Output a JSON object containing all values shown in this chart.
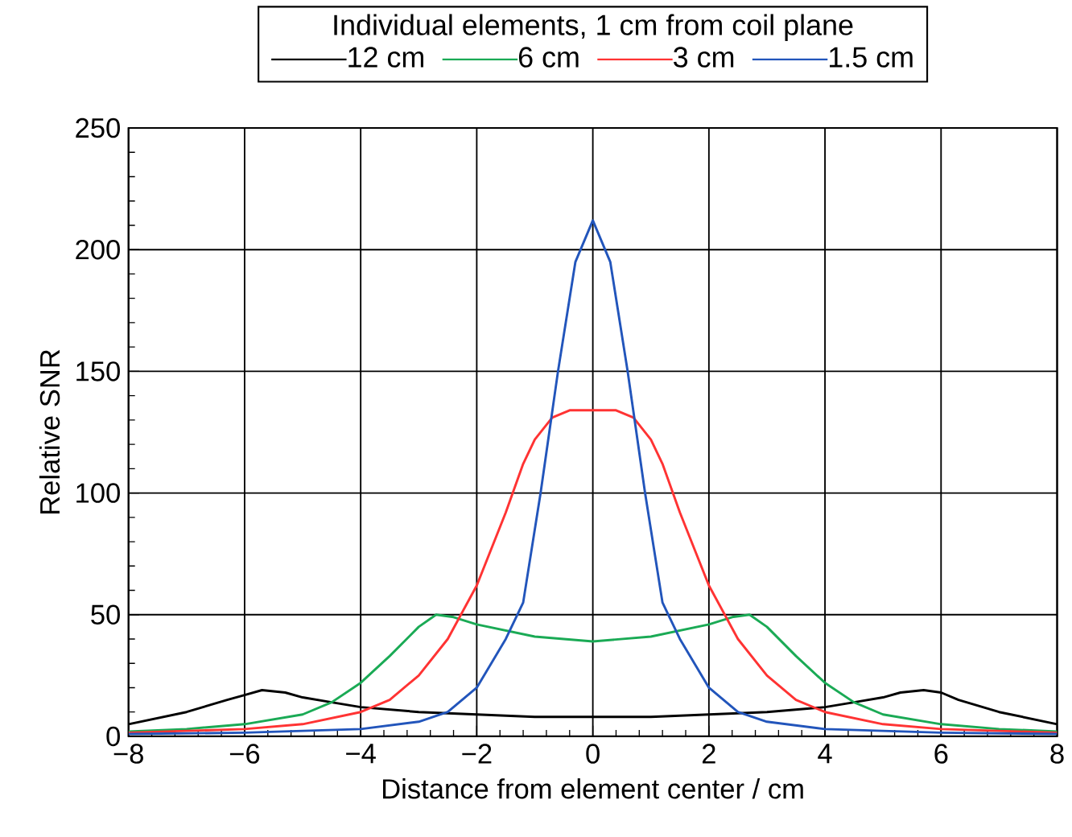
{
  "chart_data": {
    "type": "line",
    "legend_title": "Individual elements, 1 cm from coil plane",
    "xlabel": "Distance from element center / cm",
    "ylabel": "Relative SNR",
    "xlim": [
      -8,
      8
    ],
    "xticks": [
      {
        "value": -8,
        "label": "−8"
      },
      {
        "value": -6,
        "label": "−6"
      },
      {
        "value": -4,
        "label": "−4"
      },
      {
        "value": -2,
        "label": "−2"
      },
      0,
      2,
      4,
      6,
      8
    ],
    "ylim": [
      0,
      250
    ],
    "yticks": [
      0,
      50,
      100,
      150,
      200,
      250
    ],
    "grid": true,
    "legend": "top",
    "line_style": "solid",
    "marker": "none",
    "series": [
      {
        "name": "12 cm",
        "color": "#000000",
        "x": [
          -8,
          -7,
          -6.3,
          -6,
          -5.7,
          -5.3,
          -5,
          -4.5,
          -4,
          -3,
          -2,
          -1,
          0,
          1,
          2,
          3,
          4,
          4.5,
          5,
          5.3,
          5.7,
          6,
          6.3,
          7,
          8
        ],
        "values": [
          5,
          10,
          15,
          17,
          19,
          18,
          16,
          14,
          12,
          10,
          9,
          8,
          8,
          8,
          9,
          10,
          12,
          14,
          16,
          18,
          19,
          18,
          15,
          10,
          5
        ]
      },
      {
        "name": "6 cm",
        "color": "#1aaa55",
        "x": [
          -8,
          -7,
          -6,
          -5,
          -4.5,
          -4,
          -3.5,
          -3,
          -2.7,
          -2.4,
          -2,
          -1,
          0,
          1,
          2,
          2.4,
          2.7,
          3,
          3.5,
          4,
          4.5,
          5,
          6,
          7,
          8
        ],
        "values": [
          2,
          3,
          5,
          9,
          14,
          22,
          33,
          45,
          50,
          49,
          46,
          41,
          39,
          41,
          46,
          49,
          50,
          45,
          33,
          22,
          14,
          9,
          5,
          3,
          2
        ]
      },
      {
        "name": "3 cm",
        "color": "#ff3333",
        "x": [
          -8,
          -6,
          -5,
          -4,
          -3.5,
          -3,
          -2.5,
          -2,
          -1.5,
          -1.2,
          -1,
          -0.7,
          -0.4,
          0,
          0.4,
          0.7,
          1,
          1.2,
          1.5,
          2,
          2.5,
          3,
          3.5,
          4,
          5,
          6,
          8
        ],
        "values": [
          1.5,
          3,
          5,
          10,
          15,
          25,
          40,
          62,
          92,
          112,
          122,
          131,
          134,
          134,
          134,
          131,
          122,
          112,
          92,
          62,
          40,
          25,
          15,
          10,
          5,
          3,
          1.5
        ]
      },
      {
        "name": "1.5 cm",
        "color": "#2255bb",
        "x": [
          -8,
          -6,
          -4,
          -3,
          -2.5,
          -2,
          -1.5,
          -1.2,
          -0.9,
          -0.6,
          -0.3,
          0,
          0.3,
          0.6,
          0.9,
          1.2,
          1.5,
          2,
          2.5,
          3,
          4,
          6,
          8
        ],
        "values": [
          1,
          1.5,
          3,
          6,
          10,
          20,
          40,
          55,
          100,
          150,
          195,
          212,
          195,
          150,
          100,
          55,
          40,
          20,
          10,
          6,
          3,
          1.5,
          1
        ]
      }
    ]
  }
}
